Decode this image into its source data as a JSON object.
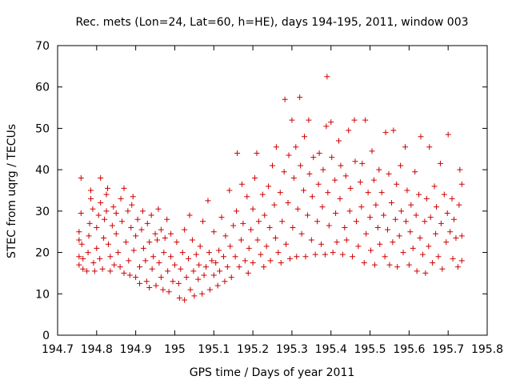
{
  "chart_data": {
    "type": "scatter",
    "title": "Rec. mets (Lon=24, Lat=60, h=HE), days 194-195, 2011, window 003",
    "xlabel": "GPS time / Days of year 2011",
    "ylabel": "STEC from uqrg / TECUs",
    "xlim": [
      194.7,
      195.8
    ],
    "ylim": [
      0,
      70
    ],
    "xticks": [
      "194.7",
      "194.8",
      "194.9",
      "195",
      "195.1",
      "195.2",
      "195.3",
      "195.4",
      "195.5",
      "195.6",
      "195.7",
      "195.8"
    ],
    "yticks": [
      "0",
      "10",
      "20",
      "30",
      "40",
      "50",
      "60",
      "70"
    ],
    "marker": "plus",
    "color": "#cc0000",
    "grid": false,
    "legend": "none",
    "series": [
      {
        "points": [
          [
            194.755,
            17
          ],
          [
            194.755,
            19
          ],
          [
            194.755,
            23
          ],
          [
            194.755,
            25
          ],
          [
            194.76,
            38
          ],
          [
            194.76,
            29.5
          ],
          [
            194.762,
            22
          ],
          [
            194.765,
            16
          ],
          [
            194.765,
            18.5
          ],
          [
            194.775,
            15.5
          ],
          [
            194.778,
            20
          ],
          [
            194.78,
            24
          ],
          [
            194.782,
            27
          ],
          [
            194.785,
            33
          ],
          [
            194.785,
            35
          ],
          [
            194.79,
            30.5
          ],
          [
            194.792,
            17.5
          ],
          [
            194.795,
            15.5
          ],
          [
            194.8,
            21
          ],
          [
            194.8,
            26
          ],
          [
            194.805,
            29
          ],
          [
            194.808,
            18.5
          ],
          [
            194.81,
            38
          ],
          [
            194.81,
            32
          ],
          [
            194.815,
            16
          ],
          [
            194.818,
            23.5
          ],
          [
            194.82,
            28
          ],
          [
            194.825,
            30
          ],
          [
            194.825,
            34
          ],
          [
            194.828,
            35.5
          ],
          [
            194.83,
            22
          ],
          [
            194.835,
            19
          ],
          [
            194.835,
            15.5
          ],
          [
            194.84,
            26.5
          ],
          [
            194.843,
            31
          ],
          [
            194.845,
            17
          ],
          [
            194.85,
            24.5
          ],
          [
            194.85,
            29.5
          ],
          [
            194.855,
            20
          ],
          [
            194.86,
            16.5
          ],
          [
            194.862,
            33
          ],
          [
            194.865,
            27.5
          ],
          [
            194.87,
            35.5
          ],
          [
            194.87,
            15
          ],
          [
            194.875,
            22.5
          ],
          [
            194.88,
            30
          ],
          [
            194.882,
            18
          ],
          [
            194.885,
            14.5
          ],
          [
            194.888,
            26
          ],
          [
            194.89,
            31.5
          ],
          [
            194.893,
            33.5
          ],
          [
            194.895,
            20.5
          ],
          [
            194.9,
            14
          ],
          [
            194.9,
            24
          ],
          [
            194.905,
            28
          ],
          [
            194.91,
            16.5
          ],
          [
            194.91,
            12.5
          ],
          [
            194.915,
            25.5
          ],
          [
            194.918,
            30
          ],
          [
            194.92,
            21
          ],
          [
            194.925,
            18
          ],
          [
            194.928,
            13
          ],
          [
            194.93,
            27
          ],
          [
            194.935,
            22.5
          ],
          [
            194.935,
            11.5
          ],
          [
            194.94,
            29
          ],
          [
            194.942,
            16
          ],
          [
            194.945,
            19
          ],
          [
            194.95,
            24.5
          ],
          [
            194.952,
            12
          ],
          [
            194.955,
            23
          ],
          [
            194.958,
            30.5
          ],
          [
            194.96,
            17.5
          ],
          [
            194.965,
            14
          ],
          [
            194.965,
            25.5
          ],
          [
            194.97,
            11
          ],
          [
            194.972,
            20
          ],
          [
            194.975,
            23.5
          ],
          [
            194.98,
            28
          ],
          [
            194.982,
            15.5
          ],
          [
            194.985,
            10.5
          ],
          [
            194.99,
            19
          ],
          [
            194.99,
            24.5
          ],
          [
            194.995,
            13
          ],
          [
            195.0,
            17
          ],
          [
            195.005,
            22.5
          ],
          [
            195.01,
            12.5
          ],
          [
            195.012,
            9
          ],
          [
            195.015,
            16
          ],
          [
            195.02,
            20
          ],
          [
            195.025,
            25.5
          ],
          [
            195.025,
            8.5
          ],
          [
            195.03,
            14
          ],
          [
            195.035,
            18.5
          ],
          [
            195.038,
            29
          ],
          [
            195.04,
            11
          ],
          [
            195.045,
            23
          ],
          [
            195.048,
            15.5
          ],
          [
            195.05,
            9.5
          ],
          [
            195.055,
            19.5
          ],
          [
            195.06,
            13.5
          ],
          [
            195.062,
            17
          ],
          [
            195.065,
            21.5
          ],
          [
            195.07,
            10
          ],
          [
            195.072,
            27.5
          ],
          [
            195.075,
            14.5
          ],
          [
            195.08,
            16.5
          ],
          [
            195.085,
            32.5
          ],
          [
            195.088,
            20
          ],
          [
            195.09,
            11
          ],
          [
            195.095,
            18
          ],
          [
            195.1,
            14.5
          ],
          [
            195.1,
            25
          ],
          [
            195.105,
            17.5
          ],
          [
            195.11,
            12
          ],
          [
            195.113,
            20.5
          ],
          [
            195.115,
            15.5
          ],
          [
            195.12,
            28.5
          ],
          [
            195.125,
            19
          ],
          [
            195.128,
            13
          ],
          [
            195.13,
            24
          ],
          [
            195.135,
            16.5
          ],
          [
            195.14,
            35
          ],
          [
            195.142,
            21.5
          ],
          [
            195.145,
            14
          ],
          [
            195.15,
            26.5
          ],
          [
            195.155,
            19
          ],
          [
            195.158,
            30
          ],
          [
            195.16,
            44
          ],
          [
            195.165,
            16.5
          ],
          [
            195.17,
            23
          ],
          [
            195.172,
            36.5
          ],
          [
            195.175,
            27
          ],
          [
            195.18,
            18
          ],
          [
            195.185,
            33.5
          ],
          [
            195.188,
            15
          ],
          [
            195.19,
            21
          ],
          [
            195.195,
            25.5
          ],
          [
            195.2,
            30.5
          ],
          [
            195.2,
            17.5
          ],
          [
            195.205,
            38
          ],
          [
            195.21,
            44
          ],
          [
            195.212,
            23
          ],
          [
            195.215,
            27.5
          ],
          [
            195.22,
            19.5
          ],
          [
            195.225,
            34
          ],
          [
            195.228,
            16.5
          ],
          [
            195.23,
            29
          ],
          [
            195.235,
            21.5
          ],
          [
            195.24,
            36
          ],
          [
            195.243,
            26
          ],
          [
            195.245,
            18
          ],
          [
            195.25,
            41
          ],
          [
            195.255,
            31.5
          ],
          [
            195.258,
            23.5
          ],
          [
            195.26,
            45.5
          ],
          [
            195.265,
            20
          ],
          [
            195.27,
            34.5
          ],
          [
            195.272,
            17.5
          ],
          [
            195.275,
            27.5
          ],
          [
            195.28,
            39.5
          ],
          [
            195.282,
            57
          ],
          [
            195.285,
            22
          ],
          [
            195.29,
            32
          ],
          [
            195.292,
            43.5
          ],
          [
            195.295,
            18.5
          ],
          [
            195.3,
            52
          ],
          [
            195.302,
            26
          ],
          [
            195.305,
            38
          ],
          [
            195.31,
            45.5
          ],
          [
            195.312,
            19
          ],
          [
            195.315,
            30.5
          ],
          [
            195.32,
            57.5
          ],
          [
            195.322,
            41
          ],
          [
            195.325,
            24.5
          ],
          [
            195.33,
            35
          ],
          [
            195.332,
            48
          ],
          [
            195.335,
            19
          ],
          [
            195.34,
            29
          ],
          [
            195.343,
            52
          ],
          [
            195.345,
            39
          ],
          [
            195.35,
            23
          ],
          [
            195.352,
            33.5
          ],
          [
            195.355,
            43
          ],
          [
            195.36,
            19.5
          ],
          [
            195.365,
            27.5
          ],
          [
            195.368,
            36.5
          ],
          [
            195.37,
            44
          ],
          [
            195.375,
            22
          ],
          [
            195.378,
            31
          ],
          [
            195.38,
            40
          ],
          [
            195.385,
            19.5
          ],
          [
            195.388,
            50.5
          ],
          [
            195.39,
            62.5
          ],
          [
            195.392,
            34.5
          ],
          [
            195.395,
            26.5
          ],
          [
            195.4,
            51.5
          ],
          [
            195.402,
            43
          ],
          [
            195.405,
            20
          ],
          [
            195.41,
            37.5
          ],
          [
            195.412,
            29.5
          ],
          [
            195.415,
            22.5
          ],
          [
            195.42,
            47
          ],
          [
            195.423,
            33
          ],
          [
            195.425,
            41
          ],
          [
            195.43,
            19.5
          ],
          [
            195.435,
            26
          ],
          [
            195.438,
            38.5
          ],
          [
            195.44,
            23
          ],
          [
            195.445,
            49.5
          ],
          [
            195.448,
            30
          ],
          [
            195.45,
            35.5
          ],
          [
            195.455,
            19
          ],
          [
            195.46,
            52
          ],
          [
            195.462,
            42
          ],
          [
            195.465,
            27.5
          ],
          [
            195.47,
            21.5
          ],
          [
            195.475,
            37
          ],
          [
            195.478,
            31
          ],
          [
            195.48,
            41.5
          ],
          [
            195.485,
            17.5
          ],
          [
            195.488,
            52
          ],
          [
            195.49,
            24.5
          ],
          [
            195.495,
            34.5
          ],
          [
            195.5,
            28.5
          ],
          [
            195.502,
            20.5
          ],
          [
            195.505,
            44.5
          ],
          [
            195.51,
            37.5
          ],
          [
            195.512,
            17
          ],
          [
            195.515,
            31.5
          ],
          [
            195.52,
            26
          ],
          [
            195.523,
            40
          ],
          [
            195.525,
            22
          ],
          [
            195.53,
            34.5
          ],
          [
            195.535,
            29
          ],
          [
            195.538,
            19
          ],
          [
            195.54,
            49
          ],
          [
            195.545,
            25.5
          ],
          [
            195.548,
            39
          ],
          [
            195.55,
            17
          ],
          [
            195.555,
            32
          ],
          [
            195.558,
            22.5
          ],
          [
            195.56,
            49.5
          ],
          [
            195.565,
            28
          ],
          [
            195.568,
            36.5
          ],
          [
            195.57,
            16.5
          ],
          [
            195.575,
            24
          ],
          [
            195.578,
            41
          ],
          [
            195.58,
            30
          ],
          [
            195.585,
            20
          ],
          [
            195.59,
            45.5
          ],
          [
            195.592,
            27.5
          ],
          [
            195.595,
            35
          ],
          [
            195.6,
            17
          ],
          [
            195.603,
            25
          ],
          [
            195.605,
            31.5
          ],
          [
            195.61,
            21
          ],
          [
            195.615,
            39.5
          ],
          [
            195.618,
            29
          ],
          [
            195.62,
            15.5
          ],
          [
            195.625,
            34
          ],
          [
            195.628,
            23.5
          ],
          [
            195.63,
            48
          ],
          [
            195.635,
            19.5
          ],
          [
            195.64,
            27.5
          ],
          [
            195.642,
            15
          ],
          [
            195.645,
            33
          ],
          [
            195.65,
            21.5
          ],
          [
            195.652,
            45.5
          ],
          [
            195.655,
            28.5
          ],
          [
            195.66,
            17.5
          ],
          [
            195.665,
            36
          ],
          [
            195.668,
            24.5
          ],
          [
            195.67,
            31
          ],
          [
            195.675,
            19
          ],
          [
            195.68,
            41.5
          ],
          [
            195.682,
            27
          ],
          [
            195.685,
            16
          ],
          [
            195.69,
            34
          ],
          [
            195.695,
            22.5
          ],
          [
            195.698,
            29.5
          ],
          [
            195.7,
            48.5
          ],
          [
            195.705,
            25
          ],
          [
            195.71,
            33
          ],
          [
            195.712,
            18.5
          ],
          [
            195.715,
            28
          ],
          [
            195.72,
            23.5
          ],
          [
            195.725,
            16.5
          ],
          [
            195.728,
            31.5
          ],
          [
            195.73,
            40
          ],
          [
            195.735,
            36.5
          ],
          [
            195.735,
            24
          ],
          [
            195.735,
            18
          ]
        ]
      }
    ]
  }
}
